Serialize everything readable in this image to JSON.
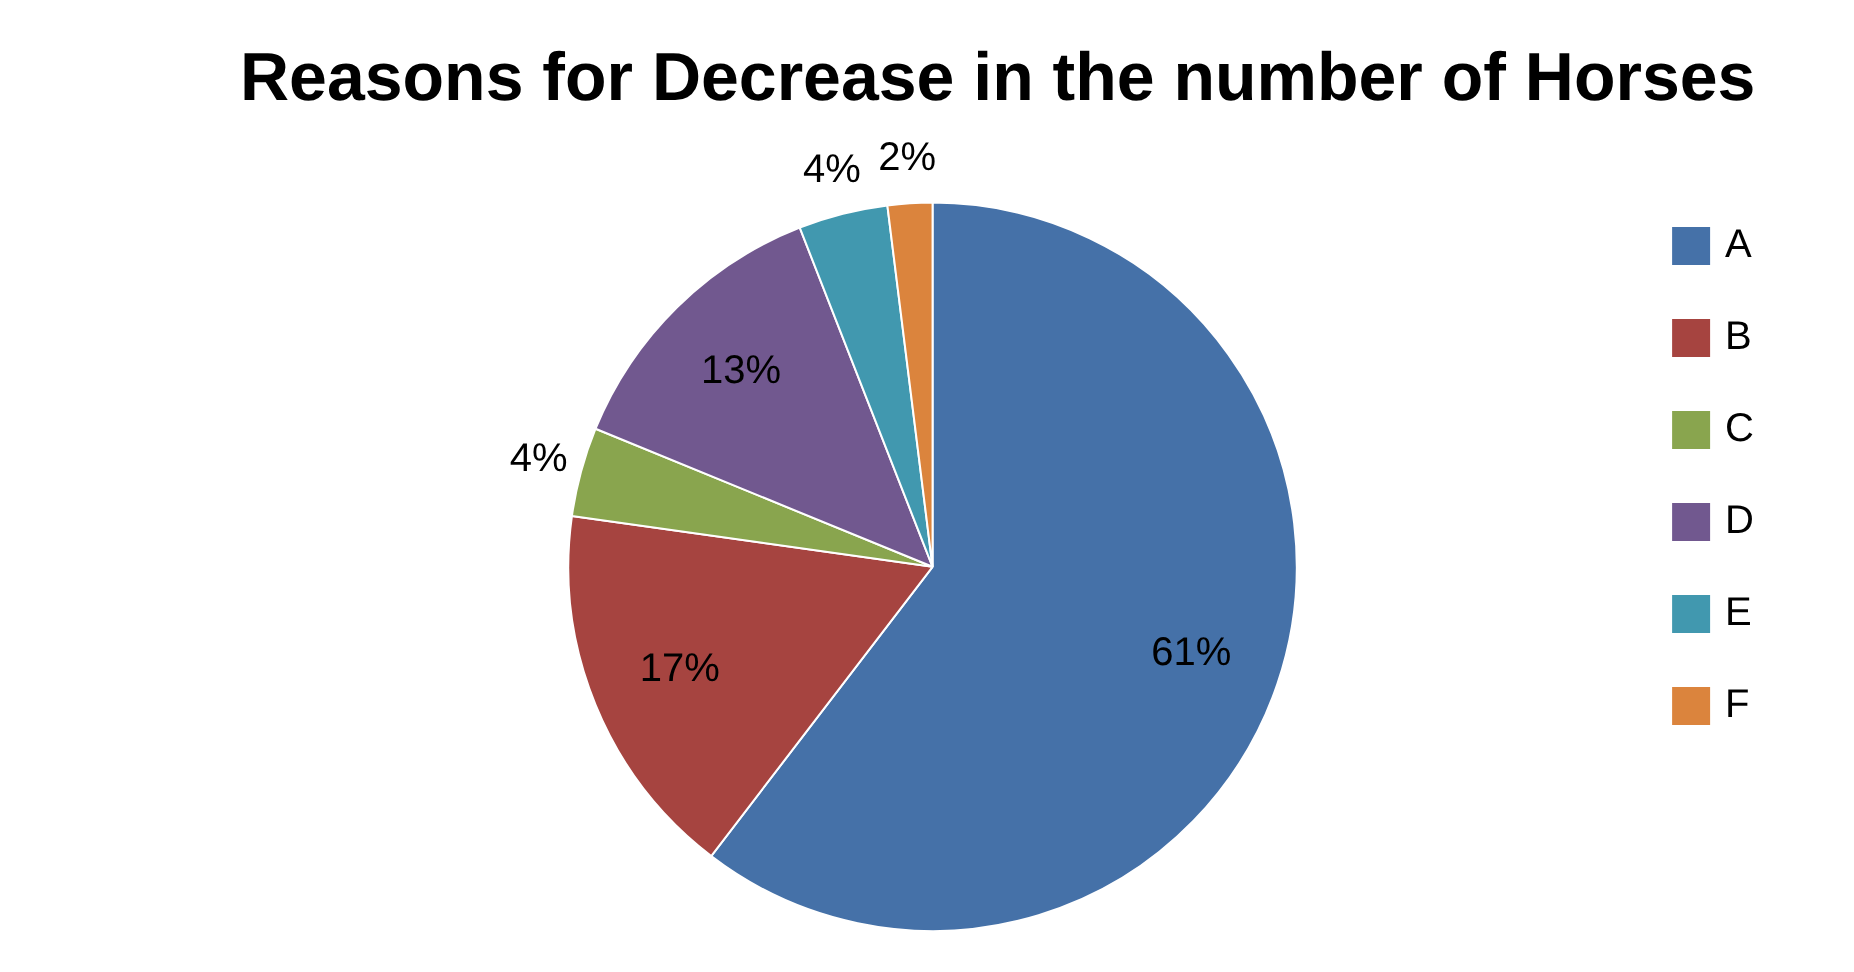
{
  "chart_data": {
    "type": "pie",
    "title": "Reasons for Decrease in the number of Horses",
    "categories": [
      "A",
      "B",
      "C",
      "D",
      "E",
      "F"
    ],
    "values": [
      61,
      17,
      4,
      13,
      4,
      2
    ],
    "colors": [
      "#4571a8",
      "#a64440",
      "#89a54e",
      "#71588f",
      "#4198af",
      "#db843d"
    ],
    "value_labels": [
      "61%",
      "17%",
      "4%",
      "13%",
      "4%",
      "2%"
    ],
    "legend": "right"
  }
}
